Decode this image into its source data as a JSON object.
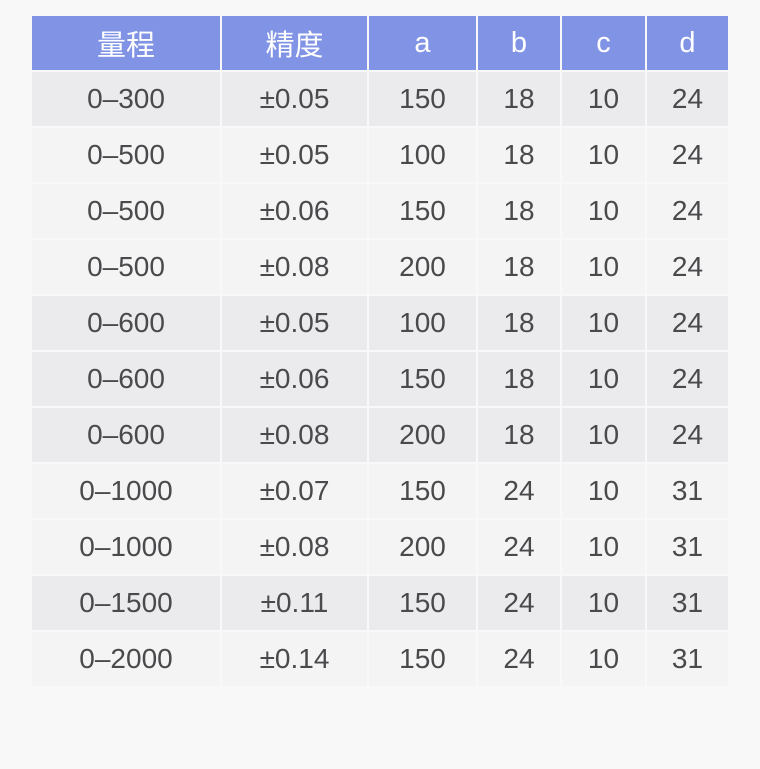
{
  "chart_data": {
    "type": "table",
    "title": "",
    "columns": [
      "量程",
      "精度",
      "a",
      "b",
      "c",
      "d"
    ],
    "rows": [
      [
        "0–300",
        "±0.05",
        "150",
        "18",
        "10",
        "24"
      ],
      [
        "0–500",
        "±0.05",
        "100",
        "18",
        "10",
        "24"
      ],
      [
        "0–500",
        "±0.06",
        "150",
        "18",
        "10",
        "24"
      ],
      [
        "0–500",
        "±0.08",
        "200",
        "18",
        "10",
        "24"
      ],
      [
        "0–600",
        "±0.05",
        "100",
        "18",
        "10",
        "24"
      ],
      [
        "0–600",
        "±0.06",
        "150",
        "18",
        "10",
        "24"
      ],
      [
        "0–600",
        "±0.08",
        "200",
        "18",
        "10",
        "24"
      ],
      [
        "0–1000",
        "±0.07",
        "150",
        "24",
        "10",
        "31"
      ],
      [
        "0–1000",
        "±0.08",
        "200",
        "24",
        "10",
        "31"
      ],
      [
        "0–1500",
        "±0.11",
        "150",
        "24",
        "10",
        "31"
      ],
      [
        "0–2000",
        "±0.14",
        "150",
        "24",
        "10",
        "31"
      ]
    ],
    "layout_hints": {
      "header_position": "top",
      "grid": "white 2px hairline gaps between cells",
      "striping": "rows shaded in alternating groups by 量程 value"
    }
  },
  "colors": {
    "page-bg": "#f8f8f8",
    "header-bg": "#8093e4",
    "header-text": "#ffffff",
    "row-dark": "#ebebed",
    "row-light": "#f4f4f5",
    "cell-text": "#4a4a4d"
  }
}
